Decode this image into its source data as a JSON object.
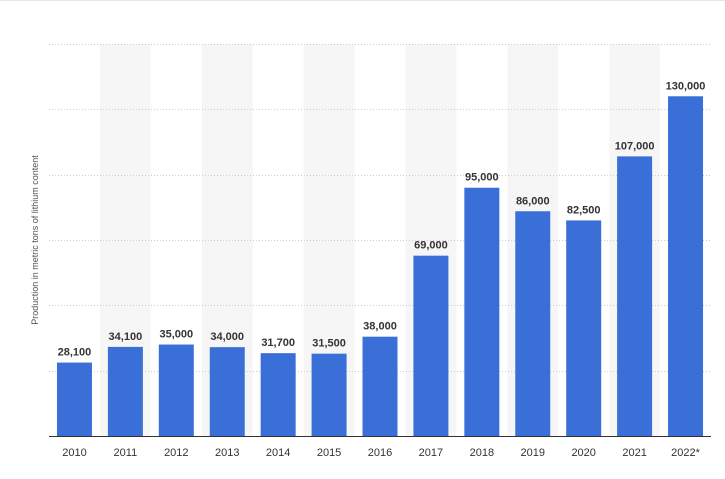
{
  "chart_data": {
    "type": "bar",
    "title": "",
    "xlabel": "",
    "ylabel": "Production in metric tons of lithium content",
    "categories": [
      "2010",
      "2011",
      "2012",
      "2013",
      "2014",
      "2015",
      "2016",
      "2017",
      "2018",
      "2019",
      "2020",
      "2021",
      "2022*"
    ],
    "values": [
      28100,
      34100,
      35000,
      34000,
      31700,
      31500,
      38000,
      69000,
      95000,
      86000,
      82500,
      107000,
      130000
    ],
    "value_labels": [
      "28,100",
      "34,100",
      "35,000",
      "34,000",
      "31,700",
      "31,500",
      "38,000",
      "69,000",
      "95,000",
      "86,000",
      "82,500",
      "107,000",
      "130,000"
    ],
    "ylim": [
      0,
      150000
    ],
    "grid": true,
    "legend": "none",
    "colors": {
      "bar": "#3a6fd8",
      "band": "#f6f6f6",
      "grid": "#cccccc",
      "axis": "#333333"
    }
  }
}
